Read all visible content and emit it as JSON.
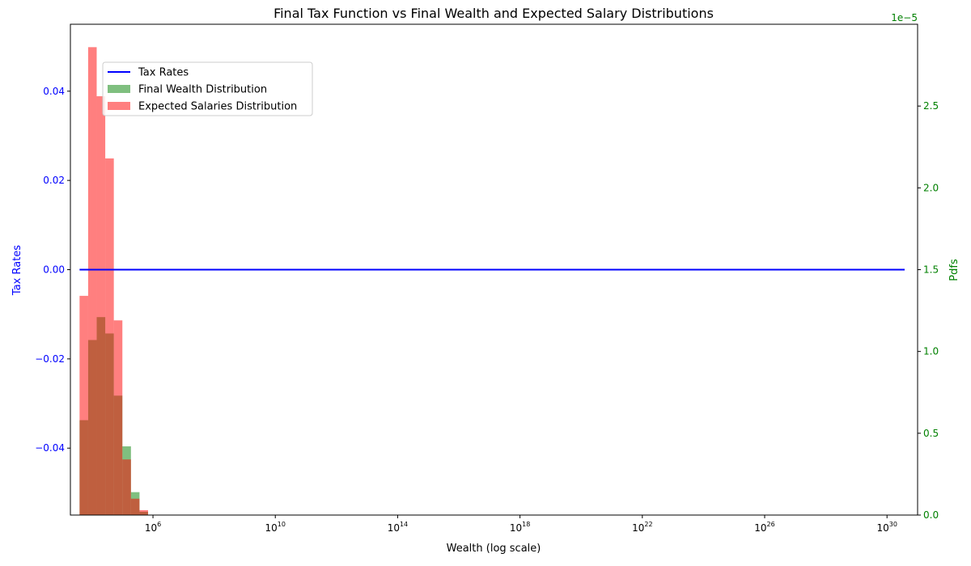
{
  "chart_data": {
    "type": "bar",
    "title": "Final Tax Function vs Final Wealth and Expected Salary Distributions",
    "xlabel": "Wealth (log scale)",
    "ylabel_left": "Tax Rates",
    "ylabel_right": "Pdfs",
    "right_axis_offset": "1e−5",
    "x_scale": "log",
    "x_ticks": [
      {
        "exp": 6,
        "base": "10",
        "sup": "6"
      },
      {
        "exp": 10,
        "base": "10",
        "sup": "10"
      },
      {
        "exp": 14,
        "base": "10",
        "sup": "14"
      },
      {
        "exp": 18,
        "base": "10",
        "sup": "18"
      },
      {
        "exp": 22,
        "base": "10",
        "sup": "22"
      },
      {
        "exp": 26,
        "base": "10",
        "sup": "26"
      },
      {
        "exp": 30,
        "base": "10",
        "sup": "30"
      }
    ],
    "xlim_log10": [
      3.3,
      31.0
    ],
    "ylim_left": [
      -0.055,
      0.055
    ],
    "ylim_right": [
      0,
      3.0
    ],
    "y_left_ticks": [
      {
        "value": 0.04,
        "label": "0.04"
      },
      {
        "value": 0.02,
        "label": "0.02"
      },
      {
        "value": 0.0,
        "label": "0.00"
      },
      {
        "value": -0.02,
        "label": "−0.02"
      },
      {
        "value": -0.04,
        "label": "−0.04"
      }
    ],
    "y_right_ticks": [
      {
        "value": 0.0,
        "label": "0.0"
      },
      {
        "value": 0.5,
        "label": "0.5"
      },
      {
        "value": 1.0,
        "label": "1.0"
      },
      {
        "value": 1.5,
        "label": "1.5"
      },
      {
        "value": 2.0,
        "label": "2.0"
      },
      {
        "value": 2.5,
        "label": "2.5"
      }
    ],
    "legend_position": "upper-left",
    "grid": false,
    "series": [
      {
        "name": "Tax Rates",
        "kind": "line",
        "axis": "left",
        "color": "#0000ff",
        "x_log10": [
          3.6,
          31.6
        ],
        "y": [
          0.0,
          0.0
        ]
      },
      {
        "name": "Final Wealth Distribution",
        "kind": "histogram",
        "axis": "right",
        "color": "#008000",
        "opacity": 0.5,
        "bins": [
          {
            "x0": 3.6,
            "x1": 3.88,
            "value": 0.58
          },
          {
            "x0": 3.88,
            "x1": 4.16,
            "value": 1.07
          },
          {
            "x0": 4.16,
            "x1": 4.44,
            "value": 1.21
          },
          {
            "x0": 4.44,
            "x1": 4.72,
            "value": 1.11
          },
          {
            "x0": 4.72,
            "x1": 5.0,
            "value": 0.73
          },
          {
            "x0": 5.0,
            "x1": 5.28,
            "value": 0.42
          },
          {
            "x0": 5.28,
            "x1": 5.56,
            "value": 0.14
          },
          {
            "x0": 5.56,
            "x1": 5.84,
            "value": 0.02
          }
        ]
      },
      {
        "name": "Expected Salaries Distribution",
        "kind": "histogram",
        "axis": "right",
        "color": "#ff0000",
        "opacity": 0.5,
        "bins": [
          {
            "x0": 3.6,
            "x1": 3.88,
            "value": 1.34
          },
          {
            "x0": 3.88,
            "x1": 4.16,
            "value": 2.86
          },
          {
            "x0": 4.16,
            "x1": 4.44,
            "value": 2.56
          },
          {
            "x0": 4.44,
            "x1": 4.72,
            "value": 2.18
          },
          {
            "x0": 4.72,
            "x1": 5.0,
            "value": 1.19
          },
          {
            "x0": 5.0,
            "x1": 5.28,
            "value": 0.34
          },
          {
            "x0": 5.28,
            "x1": 5.56,
            "value": 0.1
          },
          {
            "x0": 5.56,
            "x1": 5.84,
            "value": 0.03
          }
        ]
      }
    ]
  }
}
